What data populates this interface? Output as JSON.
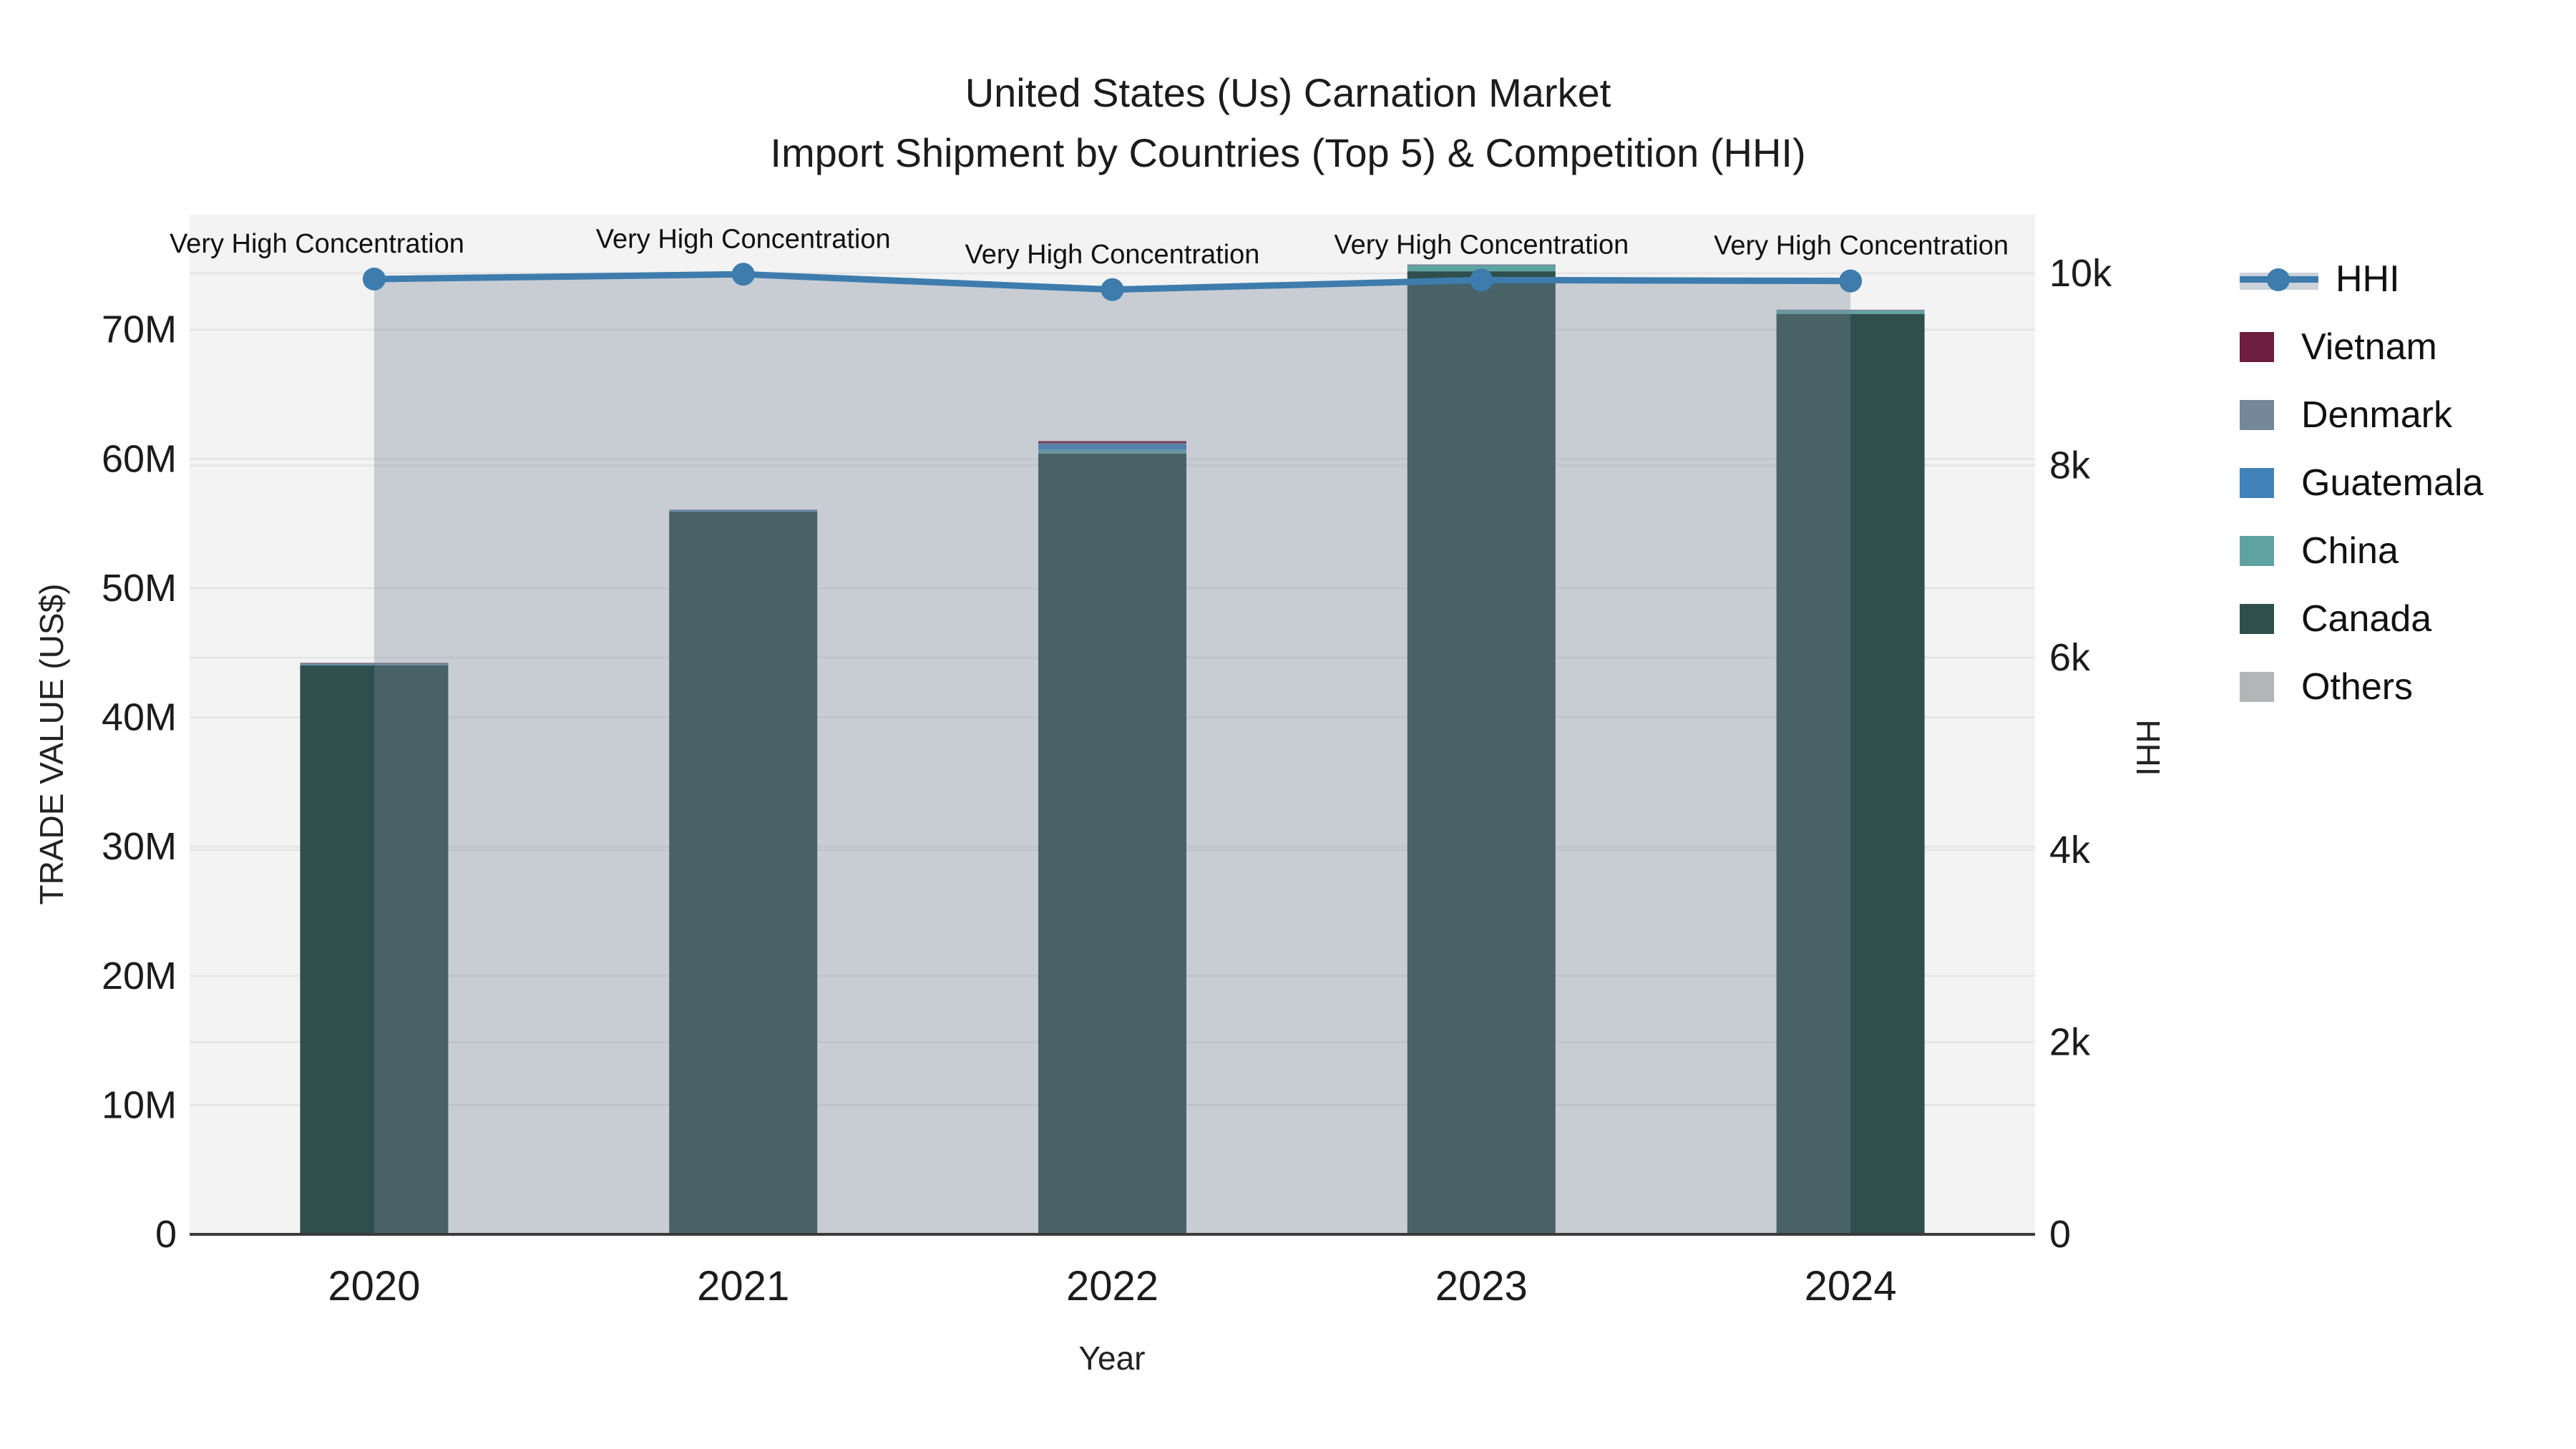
{
  "title": {
    "line1": "United States (Us) Carnation Market",
    "line2": "Import Shipment by Countries (Top 5) & Competition (HHI)"
  },
  "chart_data": {
    "type": "combo-stacked-bar-line",
    "x": [
      "2020",
      "2021",
      "2022",
      "2023",
      "2024"
    ],
    "xlabel": "Year",
    "ylabel": "TRADE VALUE (US$)",
    "y2label": "HHI",
    "bar_unit": "USD millions",
    "ylim_musd": [
      0,
      78.9
    ],
    "y2lim": [
      0,
      10610
    ],
    "ytick_labels": [
      "0",
      "10M",
      "20M",
      "30M",
      "40M",
      "50M",
      "60M",
      "70M"
    ],
    "ytick_values_musd": [
      0,
      10,
      20,
      30,
      40,
      50,
      60,
      70
    ],
    "y2tick_labels": [
      "0",
      "2k",
      "4k",
      "6k",
      "8k",
      "10k"
    ],
    "y2tick_values": [
      0,
      2000,
      4000,
      6000,
      8000,
      10000
    ],
    "series": [
      {
        "name": "Others",
        "color": "#b3b6b6",
        "values": [
          0.02,
          0.02,
          0.02,
          0.02,
          0.02
        ]
      },
      {
        "name": "Canada",
        "color": "#2f4f4d",
        "values": [
          44.0,
          55.9,
          60.4,
          74.5,
          71.2
        ]
      },
      {
        "name": "China",
        "color": "#5fa3a0",
        "values": [
          0.02,
          0.02,
          0.28,
          0.45,
          0.25
        ]
      },
      {
        "name": "Guatemala",
        "color": "#4183b8",
        "values": [
          0.03,
          0.08,
          0.45,
          0.03,
          0.03
        ]
      },
      {
        "name": "Denmark",
        "color": "#74879b",
        "values": [
          0.12,
          0.03,
          0.05,
          0.02,
          0.02
        ]
      },
      {
        "name": "Vietnam",
        "color": "#6e1e3e",
        "values": [
          0.03,
          0.02,
          0.18,
          0.02,
          0.02
        ]
      }
    ],
    "line_series": {
      "name": "HHI",
      "color": "#3d7cad",
      "area_fill": "rgba(120,135,156,0.35)",
      "values": [
        9940,
        9990,
        9830,
        9930,
        9920
      ]
    },
    "annotations": [
      "Very High Concentration",
      "Very High Concentration",
      "Very High Concentration",
      "Very High Concentration",
      "Very High Concentration"
    ],
    "legend": [
      "HHI",
      "Vietnam",
      "Denmark",
      "Guatemala",
      "China",
      "Canada",
      "Others"
    ],
    "legend_position": "right",
    "grid": true,
    "plot_bg": "#f3f3f3",
    "grid_color": "#e4e4e4",
    "zeroline_color": "#3a3a3a"
  }
}
